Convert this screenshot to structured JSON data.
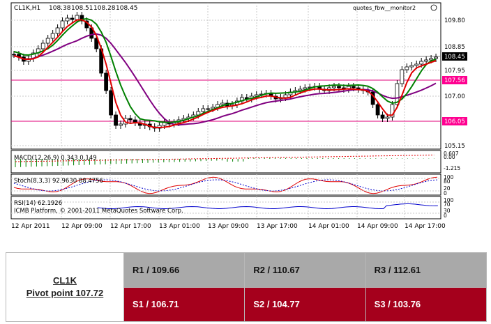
{
  "chart": {
    "symbol_title": "CL1K,H1",
    "ohlc": [
      "108.38",
      "108.51",
      "108.28",
      "108.45"
    ],
    "window_label": "quotes_fbw__monitor2",
    "colors": {
      "bg": "#ffffff",
      "grid": "#c8c8c8",
      "candle": "#000000",
      "pivot_line": "#e0007a",
      "current_price_line": "#7f7f7f",
      "ma_fast": "#e00000",
      "ma_mid": "#008000",
      "ma_slow": "#800080",
      "pivot_label_bg": "#ff0090",
      "current_label_bg": "#000000"
    },
    "price_axis": {
      "ticks": [
        "109.80",
        "108.85",
        "107.95",
        "107.00",
        "105.15"
      ],
      "current_price": "108.45",
      "pivot_labels": [
        "107.56",
        "106.05"
      ]
    },
    "macd": {
      "title": "MACD(12,26,9) 0.343 0.149",
      "axis_labels": [
        "0.607",
        "0.00",
        "-1.215"
      ]
    },
    "stoch": {
      "title": "Stoch(8,3,3) 92.9630 88.4756",
      "axis_labels": [
        "100",
        "80",
        "20",
        "0"
      ]
    },
    "rsi": {
      "title": "RSI(14) 62.1926",
      "axis_labels": [
        "100",
        "70",
        "30",
        "0"
      ]
    },
    "copyright": "ICMB Platform, © 2001-2011 MetaQuotes Software Corp.",
    "time_axis": [
      "12 Apr 2011",
      "12 Apr 09:00",
      "12 Apr 17:00",
      "13 Apr 01:00",
      "13 Apr 09:00",
      "13 Apr 17:00",
      "14 Apr 01:00",
      "14 Apr 09:00",
      "14 Apr 17:00"
    ]
  },
  "pivot_table": {
    "symbol": "CL1K",
    "pivot_label": "Pivot point 107.72",
    "resistance": [
      "R1 / 109.66",
      "R2 / 110.67",
      "R3 / 112.61"
    ],
    "support": [
      "S1 / 106.71",
      "S2 / 104.77",
      "S3 / 103.76"
    ]
  }
}
